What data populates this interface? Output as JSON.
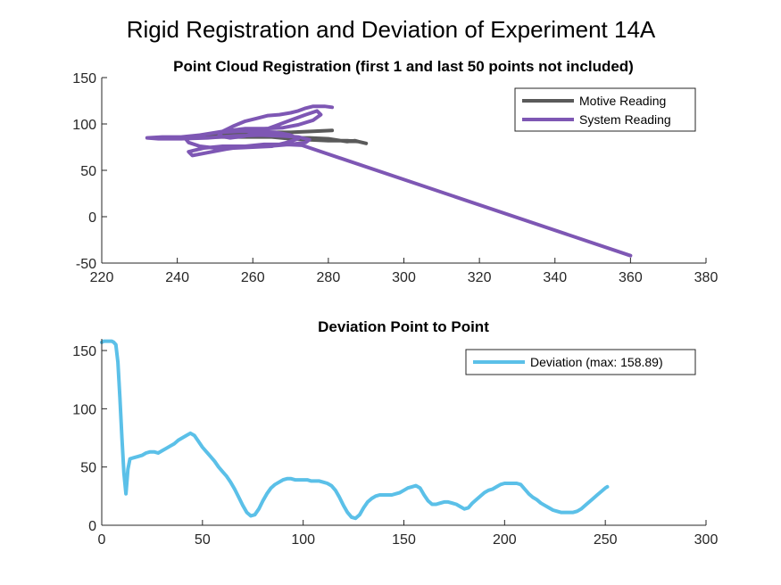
{
  "figure": {
    "title": "Rigid Registration and Deviation of Experiment 14A"
  },
  "chart_data": [
    {
      "type": "line",
      "title": "Point Cloud Registration (first 1 and last 50 points not included)",
      "xlabel": "",
      "ylabel": "",
      "xlim": [
        220,
        380
      ],
      "ylim": [
        -50,
        150
      ],
      "xticks": [
        220,
        240,
        260,
        280,
        300,
        320,
        340,
        360,
        380
      ],
      "yticks": [
        -50,
        0,
        50,
        100,
        150
      ],
      "grid": false,
      "legend": {
        "position": "top-right"
      },
      "series": [
        {
          "name": "Motive Reading",
          "color": "#5a5a5a",
          "x": [
            246,
            250,
            255,
            260,
            265,
            270,
            275,
            280,
            285,
            287,
            288,
            289,
            290,
            288,
            285,
            280,
            275,
            270,
            265,
            260,
            255,
            250,
            247,
            252,
            258,
            264,
            270,
            276,
            281
          ],
          "y": [
            86,
            86,
            86,
            86,
            86,
            85,
            85,
            84,
            81,
            82,
            81,
            80,
            79,
            81,
            82,
            82,
            83,
            84,
            86,
            88,
            88,
            87,
            86,
            89,
            90,
            91,
            91,
            92,
            93
          ]
        },
        {
          "name": "System Reading",
          "color": "#7e57b4",
          "x": [
            281,
            279,
            276,
            274,
            272,
            270,
            267,
            264,
            261,
            258,
            255,
            252,
            251,
            254,
            258,
            262,
            266,
            270,
            274,
            277,
            278,
            276,
            272,
            268,
            263,
            258,
            252,
            246,
            242,
            243,
            246,
            250,
            255,
            260,
            265,
            269,
            272,
            270,
            266,
            261,
            256,
            251,
            246,
            241,
            236,
            232,
            235,
            241,
            248,
            255,
            262,
            268,
            272,
            275,
            274,
            270,
            264,
            258,
            252,
            247,
            243,
            244,
            248,
            253,
            258,
            263,
            268,
            273,
            360
          ],
          "y": [
            118,
            119,
            119,
            117,
            114,
            112,
            110,
            109,
            106,
            103,
            98,
            92,
            87,
            85,
            87,
            92,
            98,
            104,
            110,
            114,
            110,
            104,
            99,
            96,
            95,
            95,
            92,
            88,
            85,
            80,
            76,
            74,
            74,
            75,
            76,
            80,
            84,
            88,
            91,
            92,
            92,
            91,
            88,
            86,
            86,
            85,
            84,
            84,
            85,
            87,
            88,
            87,
            86,
            83,
            80,
            78,
            76,
            76,
            76,
            74,
            70,
            66,
            69,
            73,
            76,
            78,
            78,
            77,
            -42
          ]
        }
      ]
    },
    {
      "type": "line",
      "title": "Deviation Point to Point",
      "xlabel": "",
      "ylabel": "",
      "xlim": [
        0,
        300
      ],
      "ylim": [
        0,
        160
      ],
      "xticks": [
        0,
        50,
        100,
        150,
        200,
        250,
        300
      ],
      "yticks": [
        0,
        50,
        100,
        150
      ],
      "grid": false,
      "legend": {
        "position": "top-right"
      },
      "series": [
        {
          "name": "Deviation (max: 158.89)",
          "color": "#5bc0e8",
          "x": [
            0,
            1,
            2,
            3,
            4,
            5,
            6,
            7,
            8,
            9,
            10,
            11,
            12,
            13,
            14,
            16,
            18,
            20,
            22,
            24,
            26,
            28,
            30,
            32,
            34,
            36,
            38,
            40,
            42,
            44,
            46,
            48,
            50,
            52,
            54,
            56,
            58,
            60,
            62,
            64,
            66,
            68,
            70,
            72,
            74,
            76,
            78,
            80,
            82,
            84,
            86,
            88,
            90,
            92,
            94,
            96,
            98,
            100,
            102,
            104,
            106,
            108,
            110,
            112,
            114,
            116,
            118,
            120,
            122,
            124,
            126,
            128,
            130,
            132,
            134,
            136,
            138,
            140,
            142,
            144,
            146,
            148,
            150,
            152,
            154,
            156,
            158,
            160,
            162,
            164,
            166,
            168,
            170,
            172,
            174,
            176,
            178,
            180,
            182,
            184,
            186,
            188,
            190,
            192,
            194,
            196,
            198,
            200,
            202,
            204,
            206,
            208,
            210,
            212,
            214,
            216,
            218,
            220,
            222,
            224,
            226,
            228,
            230,
            232,
            234,
            236,
            238,
            240,
            242,
            244,
            246,
            248,
            250,
            251
          ],
          "y": [
            157,
            158,
            158,
            158,
            158,
            158,
            157,
            155,
            140,
            110,
            75,
            45,
            27,
            48,
            57,
            58,
            59,
            60,
            62,
            63,
            63,
            62,
            64,
            66,
            68,
            70,
            73,
            75,
            77,
            79,
            77,
            72,
            67,
            63,
            59,
            55,
            50,
            46,
            42,
            37,
            31,
            24,
            17,
            11,
            8,
            9,
            14,
            21,
            27,
            32,
            35,
            37,
            39,
            40,
            40,
            39,
            39,
            39,
            39,
            38,
            38,
            38,
            37,
            36,
            34,
            30,
            24,
            17,
            11,
            7,
            6,
            9,
            15,
            20,
            23,
            25,
            26,
            26,
            26,
            26,
            27,
            28,
            30,
            32,
            33,
            34,
            32,
            26,
            21,
            18,
            18,
            19,
            20,
            20,
            19,
            18,
            16,
            14,
            15,
            19,
            22,
            25,
            28,
            30,
            31,
            33,
            35,
            36,
            36,
            36,
            36,
            35,
            31,
            27,
            24,
            22,
            19,
            17,
            15,
            13,
            12,
            11,
            11,
            11,
            11,
            12,
            14,
            17,
            20,
            23,
            26,
            29,
            32,
            33
          ]
        }
      ]
    }
  ]
}
